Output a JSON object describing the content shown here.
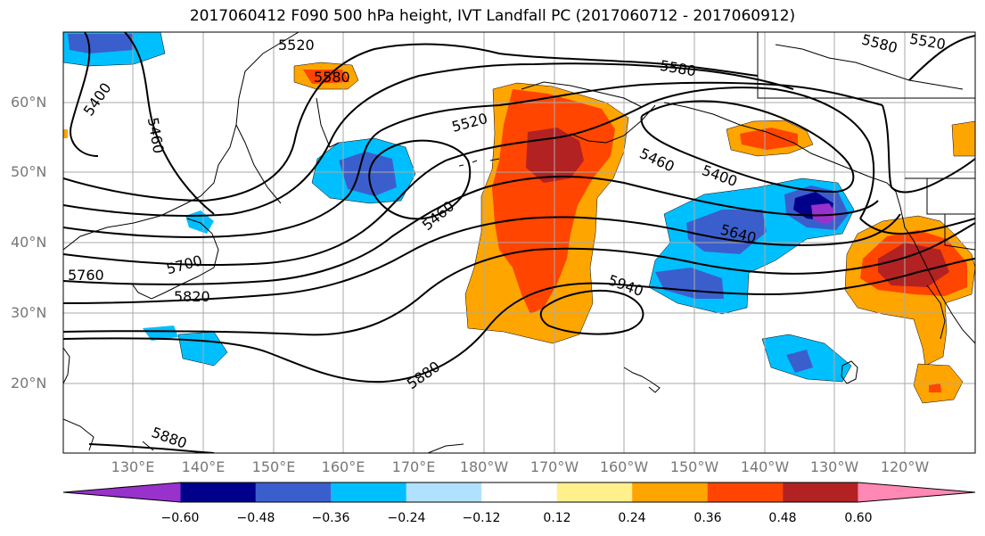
{
  "title": "2017060412 F090 500 hPa height, IVT Landfall PC (2017060712 - 2017060912)",
  "lat_labels": [
    "60°N",
    "50°N",
    "40°N",
    "30°N",
    "20°N"
  ],
  "lon_labels": [
    "130°E",
    "140°E",
    "150°E",
    "160°E",
    "170°E",
    "180°W",
    "170°W",
    "160°W",
    "150°W",
    "140°W",
    "130°W",
    "120°W"
  ],
  "contour_labels": [
    "5520",
    "5580",
    "5400",
    "5460",
    "5520",
    "5580",
    "5580",
    "5520",
    "5460",
    "5400",
    "5460",
    "5640",
    "5700",
    "5760",
    "5820",
    "5940",
    "5880",
    "5880"
  ],
  "colorbar": {
    "ticks": [
      "−0.60",
      "−0.48",
      "−0.36",
      "−0.24",
      "−0.12",
      "0.12",
      "0.24",
      "0.36",
      "0.48",
      "0.60"
    ],
    "colors": [
      "#9932cc",
      "#00008b",
      "#3a5fcd",
      "#00bfff",
      "#b0e2ff",
      "#ffffff",
      "#fff08c",
      "#ffa500",
      "#ff4500",
      "#b22222",
      "#ff89b4"
    ]
  },
  "colors": {
    "contour": "#000000",
    "grid": "#aaaaaa",
    "coast": "#000000"
  }
}
